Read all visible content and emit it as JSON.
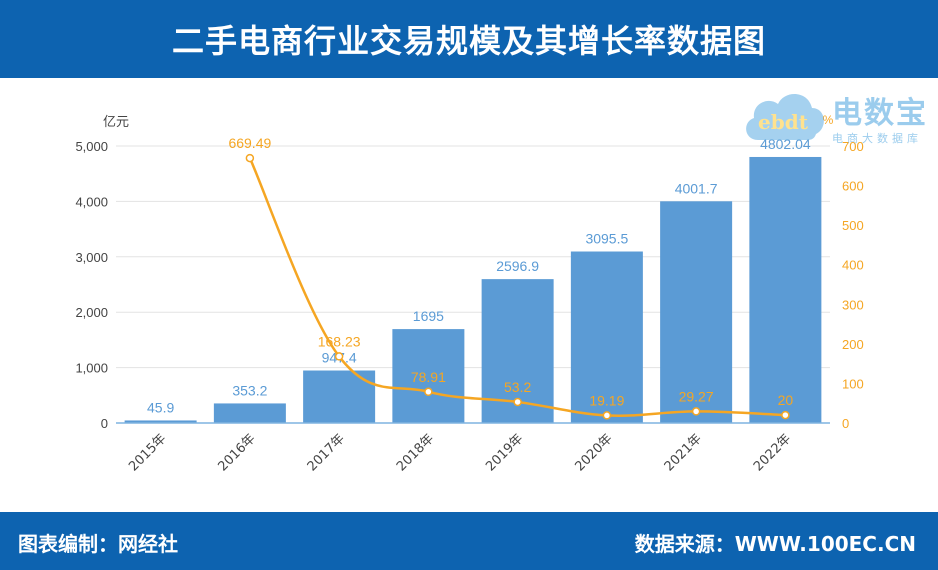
{
  "header": {
    "title": "二手电商行业交易规模及其增长率数据图"
  },
  "footer": {
    "left": "图表编制：网经社",
    "right": "数据来源：WWW.100EC.CN"
  },
  "watermark": {
    "title": "电数宝",
    "subtitle": "电商大数据库",
    "latin": "ebdt"
  },
  "colors": {
    "header_bg": "#0d63b0",
    "bar": "#5b9bd5",
    "line": "#f5a623",
    "bar_label": "#5b9bd5",
    "line_label": "#f5a623"
  },
  "chart_data": {
    "type": "bar",
    "categories": [
      "2015年",
      "2016年",
      "2017年",
      "2018年",
      "2019年",
      "2020年",
      "2021年",
      "2022年"
    ],
    "series": [
      {
        "type": "bar",
        "axis": "left",
        "values": [
          45.9,
          353.2,
          947.4,
          1695,
          2596.9,
          3095.5,
          4001.7,
          4802.04
        ],
        "labels": [
          "45.9",
          "353.2",
          "947.4",
          "1695",
          "2596.9",
          "3095.5",
          "4001.7",
          "4802.04"
        ]
      },
      {
        "type": "line",
        "axis": "right",
        "values": [
          null,
          669.49,
          168.23,
          78.91,
          53.2,
          19.19,
          29.27,
          20
        ],
        "labels": [
          "",
          "669.49",
          "168.23",
          "78.91",
          "53.2",
          "19.19",
          "29.27",
          "20"
        ]
      }
    ],
    "left_axis": {
      "unit": "亿元",
      "ylim": [
        0,
        5000
      ],
      "ticks": [
        0,
        1000,
        2000,
        3000,
        4000,
        5000
      ],
      "tick_labels": [
        "0",
        "1,000",
        "2,000",
        "3,000",
        "4,000",
        "5,000"
      ]
    },
    "right_axis": {
      "unit": "%",
      "ylim": [
        0,
        700
      ],
      "ticks": [
        0,
        100,
        200,
        300,
        400,
        500,
        600,
        700
      ],
      "tick_labels": [
        "0",
        "100",
        "200",
        "300",
        "400",
        "500",
        "600",
        "700"
      ]
    },
    "grid": true,
    "legend": "none"
  }
}
